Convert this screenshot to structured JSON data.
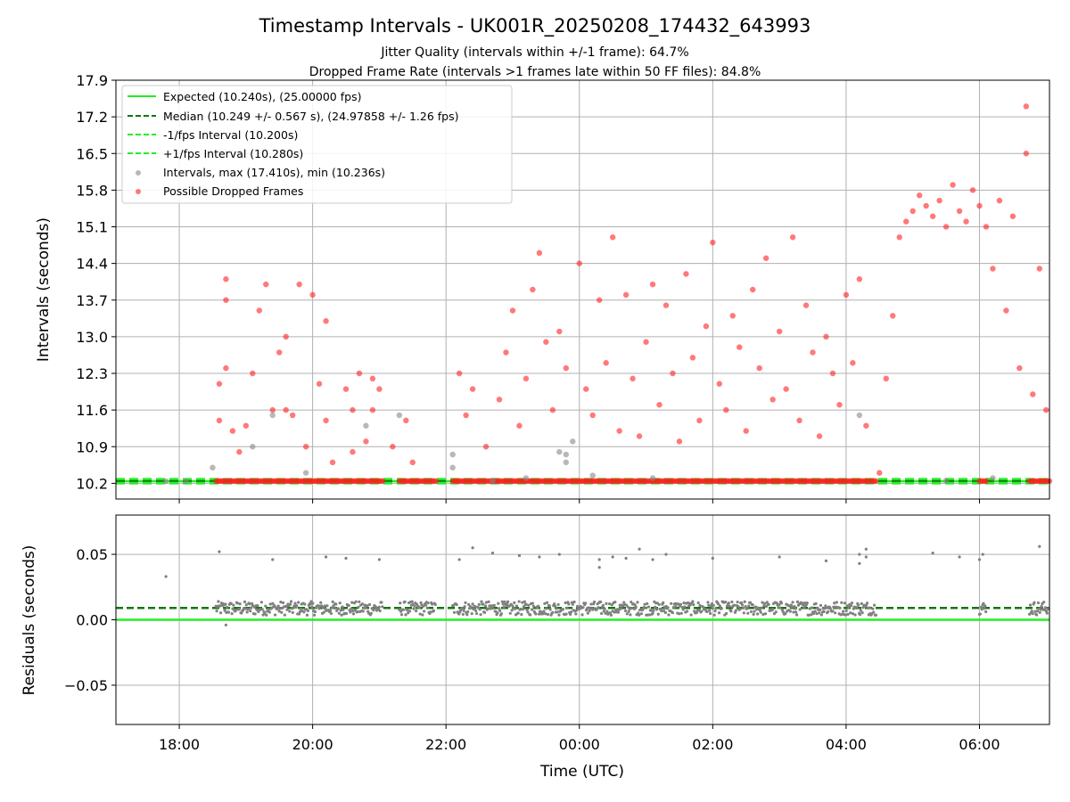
{
  "chart_data": [
    {
      "type": "scatter",
      "title": "Timestamp Intervals - UK001R_20250208_174432_643993",
      "subtitles": [
        "Jitter Quality (intervals within +/-1 frame): 64.7%",
        "Dropped Frame Rate (intervals >1 frames late within 50 FF files): 84.8%"
      ],
      "xlabel": "",
      "ylabel": "Intervals (seconds)",
      "ylim": [
        9.9,
        17.9
      ],
      "yticks": [
        "10.2",
        "10.9",
        "11.6",
        "12.3",
        "13.0",
        "13.7",
        "14.4",
        "15.1",
        "15.8",
        "16.5",
        "17.2",
        "17.9"
      ],
      "xlim_hours": [
        17.05,
        31.05
      ],
      "grid": true,
      "legend_position": "upper-left",
      "reference_lines": [
        {
          "name": "Expected (10.240s), (25.00000 fps)",
          "value": 10.24,
          "color": "#22ee22",
          "style": "solid"
        },
        {
          "name": "Median (10.249 +/- 0.567 s), (24.97858 +/- 1.26 fps)",
          "value": 10.249,
          "color": "#117711",
          "style": "dashed"
        },
        {
          "name": "-1/fps Interval (10.200s)",
          "value": 10.2,
          "color": "#22ee22",
          "style": "dashed"
        },
        {
          "name": "+1/fps Interval (10.280s)",
          "value": 10.28,
          "color": "#22ee22",
          "style": "dashed"
        }
      ],
      "series": [
        {
          "name": "Intervals, max (17.410s), min (10.236s)",
          "color": "#888888",
          "points": [
            [
              17.8,
              10.24
            ],
            [
              18.1,
              10.24
            ],
            [
              18.5,
              10.5
            ],
            [
              19.1,
              10.9
            ],
            [
              19.4,
              11.5
            ],
            [
              19.9,
              10.4
            ],
            [
              20.8,
              11.3
            ],
            [
              21.3,
              11.5
            ],
            [
              22.1,
              10.75
            ],
            [
              22.1,
              10.5
            ],
            [
              22.7,
              10.25
            ],
            [
              23.2,
              10.3
            ],
            [
              23.7,
              10.8
            ],
            [
              23.8,
              10.6
            ],
            [
              23.8,
              10.75
            ],
            [
              23.9,
              11.0
            ],
            [
              24.2,
              10.35
            ],
            [
              25.1,
              10.3
            ],
            [
              28.2,
              11.5
            ],
            [
              29.5,
              10.25
            ],
            [
              30.2,
              10.3
            ]
          ]
        },
        {
          "name": "Possible Dropped Frames",
          "color": "#ff2020",
          "points": [
            [
              18.6,
              12.1
            ],
            [
              18.7,
              12.4
            ],
            [
              18.7,
              14.1
            ],
            [
              18.7,
              13.7
            ],
            [
              18.8,
              11.2
            ],
            [
              18.6,
              11.4
            ],
            [
              18.9,
              10.8
            ],
            [
              19.0,
              11.3
            ],
            [
              19.1,
              12.3
            ],
            [
              19.2,
              13.5
            ],
            [
              19.3,
              14.0
            ],
            [
              19.4,
              11.6
            ],
            [
              19.5,
              12.7
            ],
            [
              19.6,
              13.0
            ],
            [
              19.6,
              11.6
            ],
            [
              19.7,
              11.5
            ],
            [
              19.8,
              14.0
            ],
            [
              19.9,
              10.9
            ],
            [
              20.0,
              13.8
            ],
            [
              20.1,
              12.1
            ],
            [
              20.2,
              11.4
            ],
            [
              20.2,
              13.3
            ],
            [
              20.3,
              10.6
            ],
            [
              20.5,
              12.0
            ],
            [
              20.6,
              10.8
            ],
            [
              20.6,
              11.6
            ],
            [
              20.7,
              12.3
            ],
            [
              20.8,
              11.0
            ],
            [
              20.9,
              12.2
            ],
            [
              20.9,
              11.6
            ],
            [
              21.0,
              12.0
            ],
            [
              21.2,
              10.9
            ],
            [
              21.5,
              10.6
            ],
            [
              21.4,
              11.4
            ],
            [
              22.2,
              12.3
            ],
            [
              22.3,
              11.5
            ],
            [
              22.4,
              12.0
            ],
            [
              22.6,
              10.9
            ],
            [
              22.8,
              11.8
            ],
            [
              22.9,
              12.7
            ],
            [
              23.0,
              13.5
            ],
            [
              23.1,
              11.3
            ],
            [
              23.2,
              12.2
            ],
            [
              23.3,
              13.9
            ],
            [
              23.4,
              14.6
            ],
            [
              23.5,
              12.9
            ],
            [
              23.6,
              11.6
            ],
            [
              23.7,
              13.1
            ],
            [
              23.8,
              12.4
            ],
            [
              24.0,
              14.4
            ],
            [
              24.1,
              12.0
            ],
            [
              24.2,
              11.5
            ],
            [
              24.3,
              13.7
            ],
            [
              24.4,
              12.5
            ],
            [
              24.5,
              14.9
            ],
            [
              24.6,
              11.2
            ],
            [
              24.7,
              13.8
            ],
            [
              24.8,
              12.2
            ],
            [
              24.9,
              11.1
            ],
            [
              25.0,
              12.9
            ],
            [
              25.1,
              14.0
            ],
            [
              25.2,
              11.7
            ],
            [
              25.3,
              13.6
            ],
            [
              25.4,
              12.3
            ],
            [
              25.5,
              11.0
            ],
            [
              25.6,
              14.2
            ],
            [
              25.7,
              12.6
            ],
            [
              25.8,
              11.4
            ],
            [
              25.9,
              13.2
            ],
            [
              26.0,
              14.8
            ],
            [
              26.1,
              12.1
            ],
            [
              26.2,
              11.6
            ],
            [
              26.3,
              13.4
            ],
            [
              26.4,
              12.8
            ],
            [
              26.5,
              11.2
            ],
            [
              26.6,
              13.9
            ],
            [
              26.7,
              12.4
            ],
            [
              26.8,
              14.5
            ],
            [
              26.9,
              11.8
            ],
            [
              27.0,
              13.1
            ],
            [
              27.1,
              12.0
            ],
            [
              27.2,
              14.9
            ],
            [
              27.3,
              11.4
            ],
            [
              27.4,
              13.6
            ],
            [
              27.5,
              12.7
            ],
            [
              27.6,
              11.1
            ],
            [
              27.7,
              13.0
            ],
            [
              27.8,
              12.3
            ],
            [
              27.9,
              11.7
            ],
            [
              28.0,
              13.8
            ],
            [
              28.1,
              12.5
            ],
            [
              28.2,
              14.1
            ],
            [
              28.3,
              11.3
            ],
            [
              28.5,
              10.4
            ],
            [
              28.6,
              12.2
            ],
            [
              28.7,
              13.4
            ],
            [
              28.8,
              14.9
            ],
            [
              28.9,
              15.2
            ],
            [
              29.0,
              15.4
            ],
            [
              29.1,
              15.7
            ],
            [
              29.2,
              15.5
            ],
            [
              29.3,
              15.3
            ],
            [
              29.4,
              15.6
            ],
            [
              29.5,
              15.1
            ],
            [
              29.6,
              15.9
            ],
            [
              29.7,
              15.4
            ],
            [
              29.8,
              15.2
            ],
            [
              29.9,
              15.8
            ],
            [
              30.0,
              15.5
            ],
            [
              30.1,
              15.1
            ],
            [
              30.2,
              14.3
            ],
            [
              30.3,
              15.6
            ],
            [
              30.4,
              13.5
            ],
            [
              30.5,
              15.3
            ],
            [
              30.6,
              12.4
            ],
            [
              30.7,
              16.5
            ],
            [
              30.7,
              17.4
            ],
            [
              30.8,
              11.9
            ],
            [
              30.9,
              14.3
            ],
            [
              31.0,
              11.6
            ]
          ]
        }
      ]
    },
    {
      "type": "scatter",
      "xlabel": "Time (UTC)",
      "ylabel": "Residuals (seconds)",
      "ylim": [
        -0.08,
        0.08
      ],
      "yticks": [
        "−0.05",
        "0.00",
        "0.05"
      ],
      "xticks": [
        "18:00",
        "20:00",
        "22:00",
        "00:00",
        "02:00",
        "04:00",
        "06:00"
      ],
      "grid": true,
      "reference_lines": [
        {
          "value": 0.0,
          "color": "#22ee22",
          "style": "solid"
        },
        {
          "value": 0.009,
          "color": "#117711",
          "style": "dashed"
        }
      ],
      "series": [
        {
          "color": "#888888",
          "points": [
            [
              17.8,
              0.033
            ],
            [
              18.6,
              0.052
            ],
            [
              18.7,
              -0.004
            ],
            [
              19.4,
              0.046
            ],
            [
              20.2,
              0.048
            ],
            [
              20.5,
              0.047
            ],
            [
              21.0,
              0.046
            ],
            [
              22.2,
              0.046
            ],
            [
              22.4,
              0.055
            ],
            [
              22.7,
              0.051
            ],
            [
              23.1,
              0.049
            ],
            [
              23.4,
              0.048
            ],
            [
              23.7,
              0.05
            ],
            [
              24.3,
              0.046
            ],
            [
              24.3,
              0.04
            ],
            [
              24.5,
              0.048
            ],
            [
              24.7,
              0.047
            ],
            [
              24.9,
              0.054
            ],
            [
              25.1,
              0.046
            ],
            [
              25.3,
              0.05
            ],
            [
              26.0,
              0.047
            ],
            [
              27.0,
              0.048
            ],
            [
              27.7,
              0.045
            ],
            [
              28.2,
              0.05
            ],
            [
              28.2,
              0.043
            ],
            [
              28.3,
              0.048
            ],
            [
              28.3,
              0.054
            ],
            [
              29.3,
              0.051
            ],
            [
              29.7,
              0.048
            ],
            [
              30.0,
              0.046
            ],
            [
              30.05,
              0.05
            ],
            [
              30.9,
              0.056
            ]
          ]
        }
      ]
    }
  ]
}
